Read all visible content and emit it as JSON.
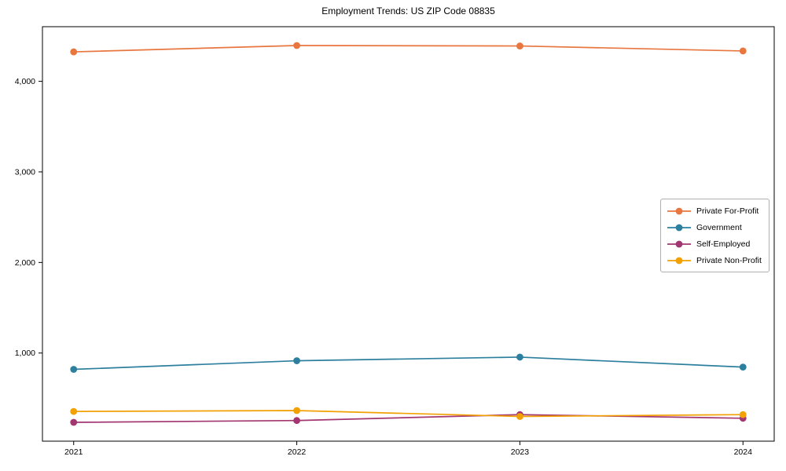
{
  "chart_data": {
    "type": "line",
    "title": "Employment Trends: US ZIP Code 08835",
    "xlabel": "",
    "ylabel": "",
    "x": [
      2021,
      2022,
      2023,
      2024
    ],
    "x_ticks": [
      {
        "value": 2021,
        "label": "2021"
      },
      {
        "value": 2022,
        "label": "2022"
      },
      {
        "value": 2023,
        "label": "2023"
      },
      {
        "value": 2024,
        "label": "2024"
      }
    ],
    "y_ticks": [
      {
        "value": 1000,
        "label": "1,000"
      },
      {
        "value": 2000,
        "label": "2,000"
      },
      {
        "value": 3000,
        "label": "3,000"
      },
      {
        "value": 4000,
        "label": "4,000"
      }
    ],
    "series": [
      {
        "name": "Private For-Profit",
        "color": "#e8763f",
        "values": [
          4325,
          4395,
          4390,
          4335
        ]
      },
      {
        "name": "Government",
        "color": "#2d7f9e",
        "values": [
          820,
          915,
          955,
          845
        ]
      },
      {
        "name": "Self-Employed",
        "color": "#a23670",
        "values": [
          235,
          255,
          320,
          280
        ]
      },
      {
        "name": "Private Non-Profit",
        "color": "#f2a104",
        "values": [
          355,
          365,
          300,
          320
        ]
      }
    ],
    "xlim": [
      2020.86,
      2024.14
    ],
    "ylim": [
      27,
      4603
    ],
    "grid": false,
    "legend_position": "right-middle",
    "spine_color": "#000000",
    "background_color": "#ffffff",
    "marker": "circle",
    "marker_radius": 4.4,
    "line_width": 1.7
  }
}
